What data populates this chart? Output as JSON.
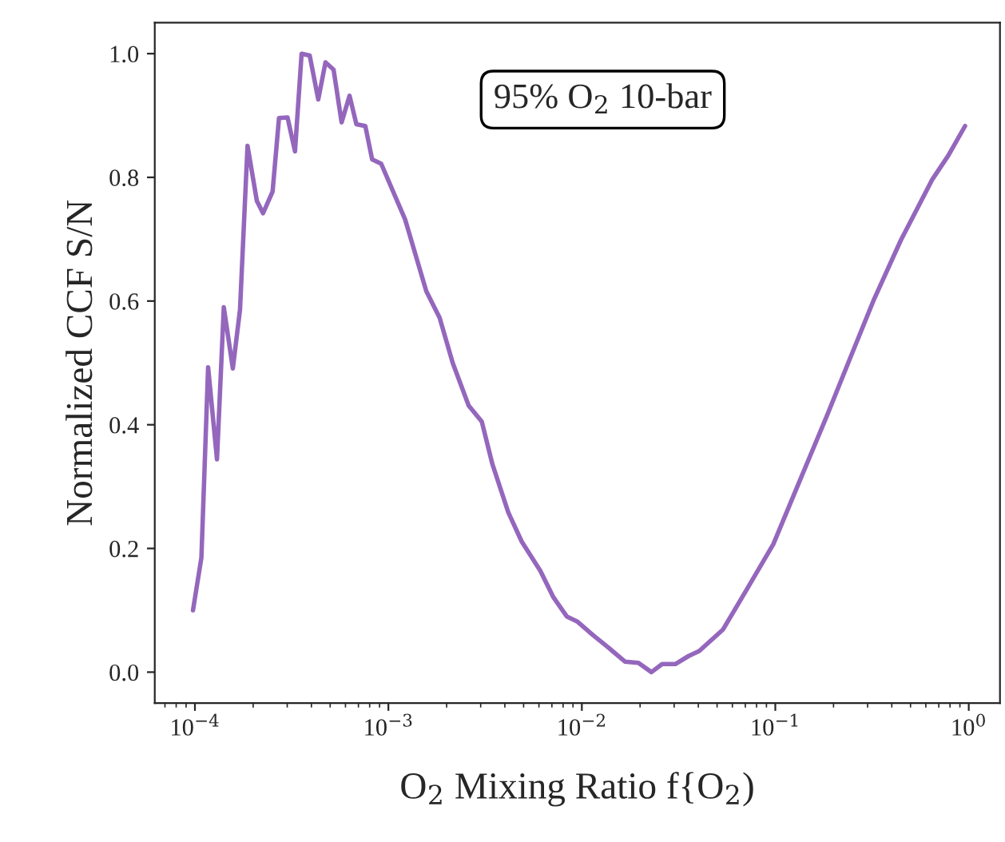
{
  "chart_data": {
    "type": "line",
    "xlabel": "O$_{2}$ Mixing Ratio f{O$_{2}$)",
    "ylabel": "Normalized CCF S/N",
    "annotations": [
      "95% O$_{2}$ 10-bar"
    ],
    "log": "x",
    "grid": false,
    "legend": false,
    "xlim": [
      6.2e-05,
      1.45
    ],
    "ylim": [
      -0.05,
      1.05
    ],
    "xticks": [
      {
        "value": 0.0001,
        "label": "10$^{−4}$"
      },
      {
        "value": 0.001,
        "label": "10$^{−3}$"
      },
      {
        "value": 0.01,
        "label": "10$^{−2}$"
      },
      {
        "value": 0.1,
        "label": "10$^{−1}$"
      },
      {
        "value": 1,
        "label": "10$^{0}$"
      }
    ],
    "yticks": [
      {
        "value": 0,
        "label": "0.0"
      },
      {
        "value": 0.2,
        "label": "0.2"
      },
      {
        "value": 0.4,
        "label": "0.4"
      },
      {
        "value": 0.6,
        "label": "0.6"
      },
      {
        "value": 0.8,
        "label": "0.8"
      },
      {
        "value": 1,
        "label": "1.0"
      }
    ],
    "series": [
      {
        "color": "#9467bd",
        "line_style": "solid",
        "marker": "none",
        "x": [
          9.77e-05,
          0.000108,
          0.000117,
          0.00013,
          0.000141,
          0.000157,
          0.000171,
          0.000187,
          0.000209,
          0.000225,
          0.000252,
          0.000272,
          0.000301,
          0.000329,
          0.000356,
          0.000392,
          0.000434,
          0.000473,
          0.000521,
          0.000573,
          0.00063,
          0.000683,
          0.00076,
          0.000824,
          0.000918,
          0.00122,
          0.00157,
          0.00184,
          0.00215,
          0.0026,
          0.00304,
          0.00345,
          0.00417,
          0.00489,
          0.0061,
          0.00713,
          0.00836,
          0.00946,
          0.0114,
          0.0138,
          0.0167,
          0.0196,
          0.0229,
          0.026,
          0.0304,
          0.0356,
          0.0404,
          0.0537,
          0.0713,
          0.0977,
          0.134,
          0.184,
          0.244,
          0.324,
          0.445,
          0.649,
          0.783,
          0.957
        ],
        "values": [
          0.1,
          0.185,
          0.493,
          0.344,
          0.59,
          0.491,
          0.586,
          0.851,
          0.762,
          0.742,
          0.777,
          0.896,
          0.897,
          0.842,
          1.0,
          0.997,
          0.926,
          0.986,
          0.974,
          0.889,
          0.932,
          0.886,
          0.883,
          0.829,
          0.822,
          0.732,
          0.616,
          0.573,
          0.5,
          0.431,
          0.405,
          0.336,
          0.258,
          0.211,
          0.164,
          0.121,
          0.09,
          0.082,
          0.06,
          0.039,
          0.017,
          0.015,
          0.0,
          0.013,
          0.013,
          0.026,
          0.034,
          0.069,
          0.134,
          0.207,
          0.31,
          0.413,
          0.508,
          0.603,
          0.698,
          0.797,
          0.835,
          0.883
        ]
      }
    ]
  }
}
